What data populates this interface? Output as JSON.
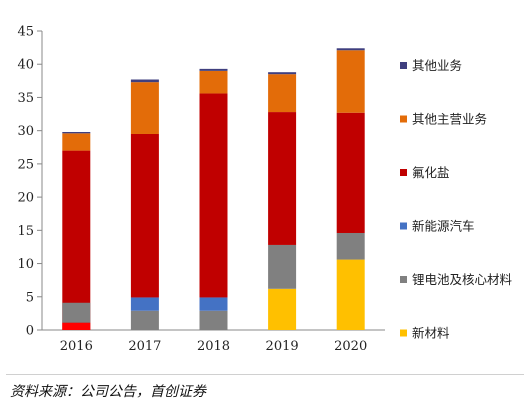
{
  "chart_data": {
    "type": "bar",
    "stacked": true,
    "categories": [
      "2016",
      "2017",
      "2018",
      "2019",
      "2020"
    ],
    "ylim": [
      0,
      45
    ],
    "yticks": [
      0,
      5,
      10,
      15,
      20,
      25,
      30,
      35,
      40,
      45
    ],
    "grid": false,
    "legend_position": "right",
    "series": [
      {
        "name": "新材料",
        "color": "#FFC000",
        "values": [
          0,
          0,
          0,
          6.2,
          10.6
        ]
      },
      {
        "name": "锂电池及核心材料",
        "color": "#808080",
        "values": [
          0,
          2.9,
          2.9,
          6.6,
          4.0
        ]
      },
      {
        "name": "新能源汽车",
        "color": "#4472C4",
        "values": [
          0,
          2.0,
          2.0,
          0,
          0
        ]
      },
      {
        "name": "氟化盐",
        "color": "#C00000",
        "values": [
          27,
          24.6,
          30.7,
          20.0,
          18.1
        ]
      },
      {
        "name": "其他主营业务",
        "color": "#E36C09",
        "values": [
          2.6,
          7.8,
          3.4,
          5.7,
          9.4
        ]
      },
      {
        "name": "其他业务",
        "color": "#3F3F7F",
        "values": [
          0.2,
          0.4,
          0.3,
          0.3,
          0.3
        ]
      }
    ],
    "overlay_series": [
      {
        "color": "#FF0000",
        "values": [
          1.1,
          0,
          0,
          0,
          0
        ]
      },
      {
        "color": "#808080",
        "values": [
          3.0,
          0,
          0,
          0,
          0
        ]
      }
    ],
    "legend_order": [
      "其他业务",
      "其他主营业务",
      "氟化盐",
      "新能源汽车",
      "锂电池及核心材料",
      "新材料"
    ]
  },
  "source_note": "资料来源：公司公告，首创证券"
}
